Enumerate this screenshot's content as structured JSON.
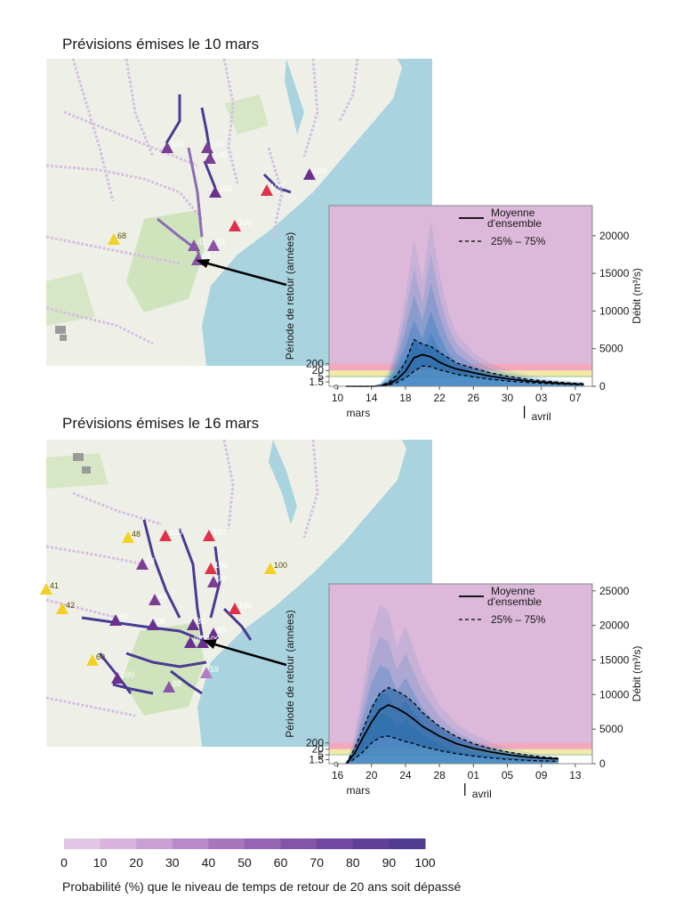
{
  "panels": [
    {
      "title": "Prévisions émises le 10 mars",
      "map_markers": [
        {
          "label": "100",
          "color": "#7a3e93"
        },
        {
          "label": "100",
          "color": "#7a3e93"
        },
        {
          "label": "100",
          "color": "#7a3e93"
        },
        {
          "label": "100",
          "color": "#6a3090"
        },
        {
          "label": "100",
          "color": "#e0304a"
        },
        {
          "label": "100",
          "color": "#6a3090"
        },
        {
          "label": "100",
          "color": "#e0304a"
        },
        {
          "label": "68",
          "color": "#f2d024"
        },
        {
          "label": "41",
          "color": "#8a55a8"
        },
        {
          "label": "51",
          "color": "#8a55a8"
        },
        {
          "label": "43",
          "color": "#8a55a8"
        }
      ]
    },
    {
      "title": "Prévisions émises le 16 mars",
      "map_markers": [
        {
          "label": "48",
          "color": "#f2d024"
        },
        {
          "label": "100",
          "color": "#e0304a"
        },
        {
          "label": "100",
          "color": "#e0304a"
        },
        {
          "label": "100",
          "color": "#f2d024"
        },
        {
          "label": "93",
          "color": "#7a3e93"
        },
        {
          "label": "100",
          "color": "#e0304a"
        },
        {
          "label": "99",
          "color": "#7a3e93"
        },
        {
          "label": "41",
          "color": "#f2d024"
        },
        {
          "label": "49",
          "color": "#7a3e93"
        },
        {
          "label": "100",
          "color": "#e0304a"
        },
        {
          "label": "42",
          "color": "#f2d024"
        },
        {
          "label": "97",
          "color": "#6a3090"
        },
        {
          "label": "98",
          "color": "#6a3090"
        },
        {
          "label": "82",
          "color": "#6a3090"
        },
        {
          "label": "88",
          "color": "#6a3090"
        },
        {
          "label": "98",
          "color": "#6a3090"
        },
        {
          "label": "100",
          "color": "#6a3090"
        },
        {
          "label": "60",
          "color": "#f2d024"
        },
        {
          "label": "100",
          "color": "#6a3090"
        },
        {
          "label": "88",
          "color": "#8a55a8"
        },
        {
          "label": "59",
          "color": "#b57cc4"
        }
      ]
    }
  ],
  "chart_data": [
    {
      "type": "area",
      "series": [
        {
          "name": "Moyenne d'ensemble",
          "style": "solid",
          "x": [
            11,
            12,
            13,
            14,
            15,
            16,
            17,
            18,
            19,
            20,
            21,
            22,
            23,
            24,
            26,
            28,
            30,
            32,
            34,
            36,
            38,
            39
          ],
          "values": [
            0,
            0,
            0,
            0,
            50,
            300,
            900,
            2000,
            3800,
            4200,
            3900,
            3200,
            2700,
            2300,
            1800,
            1350,
            1000,
            750,
            550,
            400,
            300,
            280
          ]
        },
        {
          "name": "25% – 75%",
          "style": "dashed",
          "x": [
            11,
            12,
            13,
            14,
            15,
            16,
            17,
            18,
            19,
            20,
            21,
            22,
            23,
            24,
            26,
            28,
            30,
            32,
            34,
            36,
            38,
            39
          ],
          "values": [
            0,
            0,
            0,
            0,
            100,
            500,
            1500,
            3200,
            6200,
            5600,
            5300,
            4500,
            3800,
            3100,
            2400,
            1800,
            1350,
            1000,
            750,
            550,
            400,
            350
          ]
        },
        {
          "name": "25% – 75%",
          "style": "dashed",
          "x": [
            11,
            12,
            13,
            14,
            15,
            16,
            17,
            18,
            19,
            20,
            21,
            22,
            23,
            24,
            26,
            28,
            30,
            32,
            34,
            36,
            38,
            39
          ],
          "values": [
            0,
            0,
            0,
            0,
            20,
            150,
            500,
            1100,
            2000,
            2700,
            2600,
            2200,
            1900,
            1600,
            1250,
            950,
            700,
            550,
            400,
            300,
            230,
            200
          ]
        },
        {
          "name": "ensemble envelope",
          "style": "fill",
          "x": [
            11,
            14,
            15,
            16,
            17,
            18,
            19,
            20,
            21,
            22,
            23,
            24,
            26,
            28,
            30,
            32,
            34,
            36,
            38,
            39
          ],
          "values": [
            0,
            0,
            400,
            2000,
            6000,
            12000,
            19500,
            14000,
            22000,
            15000,
            10000,
            7000,
            4500,
            3000,
            2200,
            1600,
            1200,
            900,
            700,
            650
          ]
        }
      ],
      "x_ticks": [
        "10",
        "14",
        "18",
        "22",
        "26",
        "30",
        "03",
        "07"
      ],
      "x_tick_values": [
        10,
        14,
        18,
        22,
        26,
        30,
        34,
        38
      ],
      "month_labels": [
        "mars",
        "avril"
      ],
      "month_divider_value": 32,
      "xlim": [
        9,
        40
      ],
      "right_ticks": [
        "0",
        "5000",
        "10000",
        "15000",
        "20000"
      ],
      "right_tick_values": [
        0,
        5000,
        10000,
        15000,
        20000
      ],
      "ylim": [
        0,
        24000
      ],
      "left_ticks": [
        "1.5",
        "5",
        "20",
        "200"
      ],
      "left_label": "Période de retour (années)",
      "right_label": "Débit (m³/s)",
      "legend_mean_1": "Moyenne",
      "legend_mean_2": "d'ensemble",
      "legend_range": "25% – 75%",
      "legend_placement": "top-right",
      "marker_symbol": "○",
      "thresholds": {
        "yellow": 1300,
        "orange": 2100,
        "red": 3000
      },
      "colors": {
        "bg": "#dcb8da",
        "red": "#f4a8bd",
        "yellow": "#f2e9a6",
        "green": "#c3dbb2",
        "fill": "#3b82c2"
      }
    },
    {
      "type": "area",
      "series": [
        {
          "name": "Moyenne d'ensemble",
          "style": "solid",
          "x": [
            17,
            18,
            19,
            20,
            21,
            22,
            23,
            24,
            25,
            26,
            28,
            30,
            32,
            34,
            36,
            38,
            40,
            42
          ],
          "values": [
            0,
            1500,
            3800,
            6000,
            7800,
            8500,
            8000,
            7300,
            6400,
            5400,
            4000,
            2900,
            2200,
            1700,
            1300,
            1000,
            800,
            700
          ]
        },
        {
          "name": "25% – 75%",
          "style": "dashed",
          "x": [
            17,
            18,
            19,
            20,
            21,
            22,
            23,
            24,
            25,
            26,
            28,
            30,
            32,
            34,
            36,
            38,
            40,
            42
          ],
          "values": [
            0,
            2200,
            5000,
            8000,
            10200,
            11000,
            10500,
            9800,
            8800,
            7400,
            5400,
            3900,
            2900,
            2200,
            1700,
            1300,
            1000,
            800
          ]
        },
        {
          "name": "25% – 75%",
          "style": "dashed",
          "x": [
            17,
            18,
            19,
            20,
            21,
            22,
            23,
            24,
            25,
            26,
            28,
            30,
            32,
            34,
            36,
            38,
            40,
            42
          ],
          "values": [
            0,
            700,
            1700,
            3000,
            3800,
            4000,
            3600,
            3200,
            2900,
            2500,
            1900,
            1450,
            1100,
            850,
            650,
            500,
            400,
            350
          ]
        },
        {
          "name": "ensemble envelope",
          "style": "fill",
          "x": [
            17,
            18,
            19,
            20,
            21,
            22,
            23,
            24,
            25,
            26,
            28,
            30,
            32,
            34,
            36,
            38,
            40,
            42
          ],
          "values": [
            0,
            4000,
            11000,
            19000,
            23000,
            22000,
            17000,
            20000,
            16500,
            13000,
            8500,
            5800,
            4200,
            3100,
            2300,
            1700,
            1300,
            1100
          ]
        }
      ],
      "x_ticks": [
        "16",
        "20",
        "24",
        "28",
        "01",
        "05",
        "09",
        "13"
      ],
      "x_tick_values": [
        16,
        20,
        24,
        28,
        32,
        36,
        40,
        44
      ],
      "month_labels": [
        "mars",
        "avril"
      ],
      "month_divider_value": 31,
      "xlim": [
        15,
        46
      ],
      "right_ticks": [
        "0",
        "5000",
        "10000",
        "15000",
        "20000",
        "25000"
      ],
      "right_tick_values": [
        0,
        5000,
        10000,
        15000,
        20000,
        25000
      ],
      "ylim": [
        0,
        26000
      ],
      "left_ticks": [
        "1.5",
        "5",
        "20",
        "200"
      ],
      "left_label": "Période de retour (années)",
      "right_label": "Débit (m³/s)",
      "legend_mean_1": "Moyenne",
      "legend_mean_2": "d'ensemble",
      "legend_range": "25% – 75%",
      "legend_placement": "top-right",
      "marker_symbol": "○",
      "thresholds": {
        "yellow": 1300,
        "orange": 2100,
        "red": 3000
      },
      "colors": {
        "bg": "#dcb8da",
        "red": "#f4a8bd",
        "yellow": "#f2e9a6",
        "green": "#c3dbb2",
        "fill": "#3b82c2"
      }
    }
  ],
  "colorbar": {
    "tick_labels": [
      "0",
      "10",
      "20",
      "30",
      "40",
      "50",
      "60",
      "70",
      "80",
      "90",
      "100"
    ],
    "colors": [
      "#e3c6e6",
      "#d7b3dd",
      "#c9a0d3",
      "#b98ac9",
      "#a876bd",
      "#9564b3",
      "#8255a8",
      "#70489f",
      "#5f3f97",
      "#4f3b91"
    ],
    "caption": "Probabilité (%) que le niveau de temps de retour de 20 ans soit dépassé"
  }
}
